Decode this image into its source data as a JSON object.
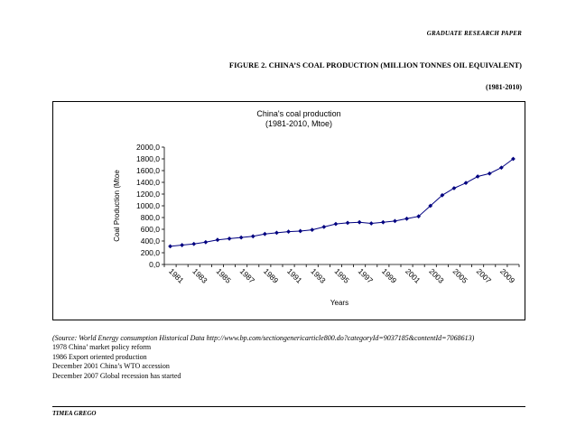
{
  "header": {
    "label": "GRADUATE RESEARCH PAPER"
  },
  "figure": {
    "title": "FIGURE 2. CHINA’S COAL PRODUCTION (MILLION TONNES OIL EQUIVALENT)",
    "years": "(1981-2010)"
  },
  "chart_data": {
    "type": "line",
    "title_line1": "China's coal production",
    "title_line2": "(1981-2010, Mtoe)",
    "xlabel": "Years",
    "ylabel": "Coal Production (Mtoe",
    "ylim": [
      0,
      2000
    ],
    "y_ticks": [
      "0,0",
      "200,0",
      "400,0",
      "600,0",
      "800,0",
      "1000,0",
      "1200,0",
      "1400,0",
      "1600,0",
      "1800,0",
      "2000,0"
    ],
    "x_tick_labels": [
      "1981",
      "1983",
      "1985",
      "1987",
      "1989",
      "1991",
      "1993",
      "1995",
      "1997",
      "1999",
      "2001",
      "2003",
      "2005",
      "2007",
      "2009"
    ],
    "x": [
      1981,
      1982,
      1983,
      1984,
      1985,
      1986,
      1987,
      1988,
      1989,
      1990,
      1991,
      1992,
      1993,
      1994,
      1995,
      1996,
      1997,
      1998,
      1999,
      2000,
      2001,
      2002,
      2003,
      2004,
      2005,
      2006,
      2007,
      2008,
      2009,
      2010
    ],
    "series": [
      {
        "name": "Coal production",
        "values": [
          310,
          330,
          350,
          380,
          420,
          440,
          460,
          480,
          520,
          540,
          560,
          570,
          590,
          640,
          690,
          710,
          720,
          700,
          720,
          740,
          780,
          820,
          1000,
          1180,
          1300,
          1390,
          1500,
          1550,
          1650,
          1800
        ]
      }
    ],
    "grid": false,
    "marker": "diamond",
    "color": "#000080"
  },
  "source": {
    "citation": "(Source: World Energy consumption Historical Data http://www.bp.com/sectiongenericarticle800.do?categoryId=9037185&contentId=7068613)",
    "notes": [
      "1978 China’ market policy reform",
      "1986 Export oriented production",
      "December 2001 China’s WTO accession",
      "December 2007 Global recession has started"
    ]
  },
  "footer": {
    "author": "TIMEA GREGO"
  }
}
